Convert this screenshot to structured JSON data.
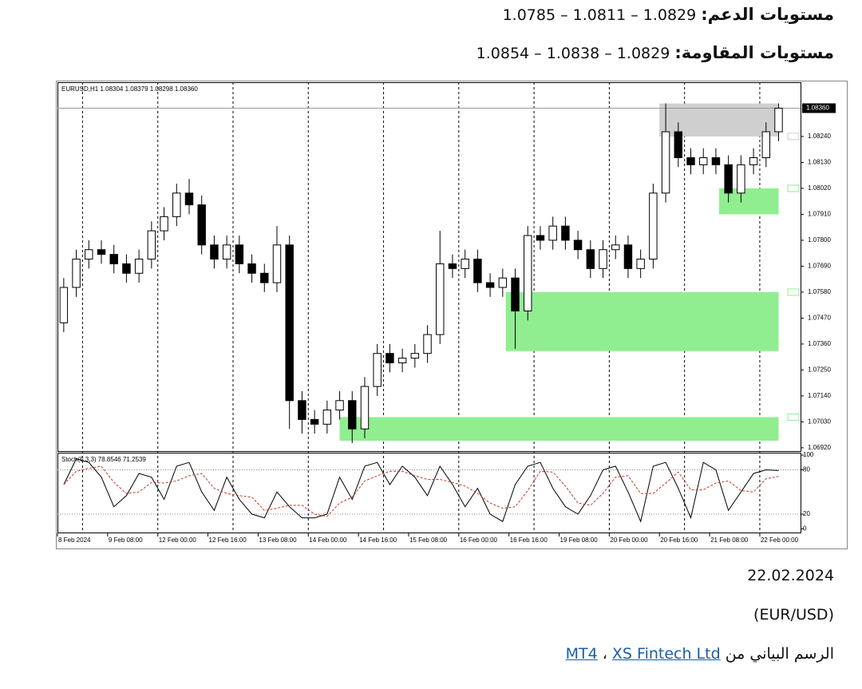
{
  "support": {
    "label": "مستويات الدعم:",
    "values": "1.0829 – 1.0811 – 1.0785"
  },
  "resistance": {
    "label": "مستويات المقاومة:",
    "values": "1.0829 – 1.0838 – 1.0854"
  },
  "chart_data": {
    "type": "candlestick",
    "header": "EURUSD,H1  1.08304 1.08379 1.08298 1.08360",
    "xlim": [
      0,
      237
    ],
    "xticks": [
      {
        "value": 0,
        "label": "8 Feb 2024"
      },
      {
        "value": 16,
        "label": "9 Feb 08:00"
      },
      {
        "value": 32,
        "label": "12 Feb 00:00"
      },
      {
        "value": 48,
        "label": "12 Feb 16:00"
      },
      {
        "value": 64,
        "label": "13 Feb 08:00"
      },
      {
        "value": 80,
        "label": "14 Feb 00:00"
      },
      {
        "value": 96,
        "label": "14 Feb 16:00"
      },
      {
        "value": 112,
        "label": "15 Feb 08:00"
      },
      {
        "value": 128,
        "label": "16 Feb 00:00"
      },
      {
        "value": 144,
        "label": "16 Feb 16:00"
      },
      {
        "value": 160,
        "label": "19 Feb 08:00"
      },
      {
        "value": 176,
        "label": "20 Feb 00:00"
      },
      {
        "value": 192,
        "label": "20 Feb 16:00"
      },
      {
        "value": 208,
        "label": "21 Feb 08:00"
      },
      {
        "value": 224,
        "label": "22 Feb 00:00"
      }
    ],
    "period_separators": [
      8,
      32,
      56,
      80,
      104,
      128,
      152,
      176,
      200,
      224
    ],
    "ylim": [
      1.06906,
      1.0847
    ],
    "yticks": [
      {
        "value": 1.0692,
        "label": "1.06920"
      },
      {
        "value": 1.0703,
        "label": "1.07030"
      },
      {
        "value": 1.0714,
        "label": "1.07140"
      },
      {
        "value": 1.0725,
        "label": "1.07250"
      },
      {
        "value": 1.0736,
        "label": "1.07360"
      },
      {
        "value": 1.0747,
        "label": "1.07470"
      },
      {
        "value": 1.0758,
        "label": "1.07580"
      },
      {
        "value": 1.0769,
        "label": "1.07690"
      },
      {
        "value": 1.078,
        "label": "1.07800"
      },
      {
        "value": 1.0791,
        "label": "1.07910"
      },
      {
        "value": 1.0802,
        "label": "1.08020"
      },
      {
        "value": 1.0813,
        "label": "1.08130"
      },
      {
        "value": 1.0824,
        "label": "1.08240"
      }
    ],
    "candle_hours": 4,
    "open": [
      1.0745,
      1.076,
      1.0772,
      1.0776,
      1.0774,
      1.077,
      1.0766,
      1.0772,
      1.0784,
      1.079,
      1.08,
      1.0795,
      1.0778,
      1.0772,
      1.0778,
      1.077,
      1.0766,
      1.0762,
      1.0778,
      1.0712,
      1.0704,
      1.0702,
      1.0708,
      1.0712,
      1.07,
      1.0718,
      1.0732,
      1.0728,
      1.073,
      1.0732,
      1.074,
      1.077,
      1.0768,
      1.0772,
      1.0762,
      1.076,
      1.0764,
      1.075,
      1.0782,
      1.078,
      1.0786,
      1.078,
      1.0776,
      1.0768,
      1.0776,
      1.0778,
      1.0768,
      1.0772,
      1.08,
      1.0826,
      1.0815,
      1.0812,
      1.0815,
      1.0812,
      1.08,
      1.0812,
      1.0815,
      1.0826
    ],
    "high": [
      1.0764,
      1.0776,
      1.078,
      1.078,
      1.0778,
      1.0774,
      1.0776,
      1.0788,
      1.0794,
      1.0804,
      1.0806,
      1.0799,
      1.0782,
      1.0782,
      1.0782,
      1.0774,
      1.077,
      1.0786,
      1.0782,
      1.0716,
      1.0708,
      1.0712,
      1.0716,
      1.0716,
      1.0722,
      1.0736,
      1.0736,
      1.0734,
      1.0736,
      1.0744,
      1.0784,
      1.0774,
      1.0776,
      1.0776,
      1.0766,
      1.0768,
      1.0768,
      1.0786,
      1.0786,
      1.079,
      1.079,
      1.0784,
      1.078,
      1.078,
      1.0782,
      1.0782,
      1.0776,
      1.0804,
      1.0838,
      1.083,
      1.0819,
      1.0819,
      1.0819,
      1.0816,
      1.0816,
      1.0819,
      1.083,
      1.0838
    ],
    "low": [
      1.0741,
      1.0756,
      1.0768,
      1.077,
      1.0766,
      1.0762,
      1.0762,
      1.0768,
      1.078,
      1.0786,
      1.0791,
      1.0774,
      1.0768,
      1.0768,
      1.0766,
      1.0762,
      1.0758,
      1.0758,
      1.07,
      1.0698,
      1.0698,
      1.0698,
      1.0704,
      1.0694,
      1.0696,
      1.0714,
      1.0724,
      1.0724,
      1.0726,
      1.0728,
      1.0736,
      1.0764,
      1.0764,
      1.0758,
      1.0756,
      1.0756,
      1.0734,
      1.0746,
      1.0776,
      1.0776,
      1.0776,
      1.0772,
      1.0764,
      1.0764,
      1.0772,
      1.0764,
      1.0764,
      1.0768,
      1.0796,
      1.0811,
      1.0808,
      1.0808,
      1.0808,
      1.0796,
      1.0796,
      1.0808,
      1.0811,
      1.0822
    ],
    "close": [
      1.076,
      1.0772,
      1.0776,
      1.0774,
      1.077,
      1.0766,
      1.0772,
      1.0784,
      1.079,
      1.08,
      1.0795,
      1.0778,
      1.0772,
      1.0778,
      1.077,
      1.0766,
      1.0762,
      1.0778,
      1.0712,
      1.0704,
      1.0702,
      1.0708,
      1.0712,
      1.07,
      1.0718,
      1.0732,
      1.0728,
      1.073,
      1.0732,
      1.074,
      1.077,
      1.0768,
      1.0772,
      1.0762,
      1.076,
      1.0764,
      1.075,
      1.0782,
      1.078,
      1.0786,
      1.078,
      1.0776,
      1.0768,
      1.0776,
      1.0778,
      1.0768,
      1.0772,
      1.08,
      1.0826,
      1.0815,
      1.0812,
      1.0815,
      1.0812,
      1.08,
      1.0812,
      1.0815,
      1.0826,
      1.0836
    ],
    "zones": [
      {
        "x": [
          192,
          230
        ],
        "y": [
          1.0824,
          1.0838
        ],
        "color": "#cfcfcf"
      },
      {
        "x": [
          211,
          230
        ],
        "y": [
          1.0802,
          1.0791
        ],
        "color": "#90ee90"
      },
      {
        "x": [
          143,
          230
        ],
        "y": [
          1.0758,
          1.0733
        ],
        "color": "#90ee90"
      },
      {
        "x": [
          90,
          230
        ],
        "y": [
          1.0705,
          1.0695
        ],
        "color": "#90ee90"
      }
    ],
    "last_price": {
      "value": 1.0836,
      "label": "1.08360"
    },
    "indicator": {
      "label": "Stoch(5,3,3) 78.8546 71.2539",
      "ylim": [
        -6,
        100
      ],
      "yticks": [
        0,
        20,
        80,
        100
      ],
      "levels": [
        20,
        80
      ],
      "series": [
        {
          "color": "#000000",
          "values": [
            60,
            95,
            90,
            70,
            30,
            45,
            75,
            70,
            40,
            85,
            90,
            50,
            25,
            70,
            40,
            20,
            15,
            50,
            30,
            15,
            15,
            20,
            70,
            40,
            85,
            90,
            60,
            85,
            70,
            45,
            85,
            60,
            30,
            55,
            20,
            10,
            60,
            85,
            90,
            55,
            30,
            20,
            45,
            80,
            85,
            50,
            10,
            85,
            90,
            55,
            15,
            90,
            80,
            25,
            50,
            75,
            80,
            79
          ]
        },
        {
          "color": "#c0392b",
          "values": [
            60,
            78,
            82,
            85,
            63,
            48,
            50,
            63,
            62,
            65,
            72,
            75,
            55,
            48,
            45,
            43,
            25,
            28,
            32,
            32,
            20,
            17,
            35,
            43,
            65,
            72,
            78,
            78,
            72,
            67,
            67,
            63,
            58,
            48,
            35,
            28,
            30,
            52,
            78,
            77,
            58,
            35,
            32,
            48,
            70,
            72,
            48,
            48,
            62,
            77,
            53,
            53,
            62,
            65,
            52,
            50,
            68,
            71
          ]
        }
      ]
    }
  },
  "date": "22.02.2024",
  "pair": "(EUR/USD)",
  "source": {
    "label": "الرسم البياني من",
    "links": [
      "MT4",
      "XS Fintech Ltd"
    ],
    "separator": "،"
  }
}
